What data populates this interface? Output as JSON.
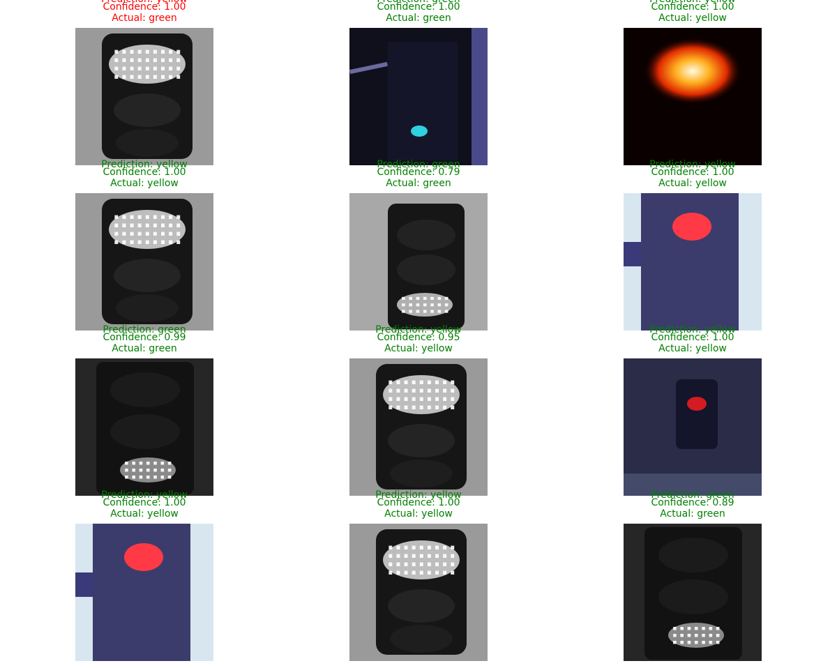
{
  "colors": {
    "correct": "#008000",
    "incorrect": "#ff0000"
  },
  "labels": {
    "prediction": "Prediction: ",
    "confidence": "Confidence: ",
    "actual": "Actual: "
  },
  "samples": [
    {
      "prediction": "yellow",
      "confidence": "1.00",
      "actual": "green",
      "correct": false,
      "image": "grayscale-light-lit-top"
    },
    {
      "prediction": "green",
      "confidence": "1.00",
      "actual": "green",
      "correct": true,
      "image": "dark-blue-light-cyan"
    },
    {
      "prediction": "yellow",
      "confidence": "1.00",
      "actual": "yellow",
      "correct": true,
      "image": "glowing-orange-light"
    },
    {
      "prediction": "yellow",
      "confidence": "1.00",
      "actual": "yellow",
      "correct": true,
      "image": "grayscale-light-lit-top"
    },
    {
      "prediction": "green",
      "confidence": "0.79",
      "actual": "green",
      "correct": true,
      "image": "grayscale-light-lit-bottom"
    },
    {
      "prediction": "yellow",
      "confidence": "1.00",
      "actual": "yellow",
      "correct": true,
      "image": "blue-light-red-top"
    },
    {
      "prediction": "green",
      "confidence": "0.99",
      "actual": "green",
      "correct": true,
      "image": "grayscale-dark-lit-bottom"
    },
    {
      "prediction": "yellow",
      "confidence": "0.95",
      "actual": "yellow",
      "correct": true,
      "image": "grayscale-light-lit-top"
    },
    {
      "prediction": "yellow",
      "confidence": "1.00",
      "actual": "yellow",
      "correct": true,
      "image": "dim-blue-light-red"
    },
    {
      "prediction": "yellow",
      "confidence": "1.00",
      "actual": "yellow",
      "correct": true,
      "image": "blue-light-red-top"
    },
    {
      "prediction": "yellow",
      "confidence": "1.00",
      "actual": "yellow",
      "correct": true,
      "image": "grayscale-light-lit-top"
    },
    {
      "prediction": "green",
      "confidence": "0.89",
      "actual": "green",
      "correct": true,
      "image": "grayscale-dark-lit-bottom"
    }
  ]
}
